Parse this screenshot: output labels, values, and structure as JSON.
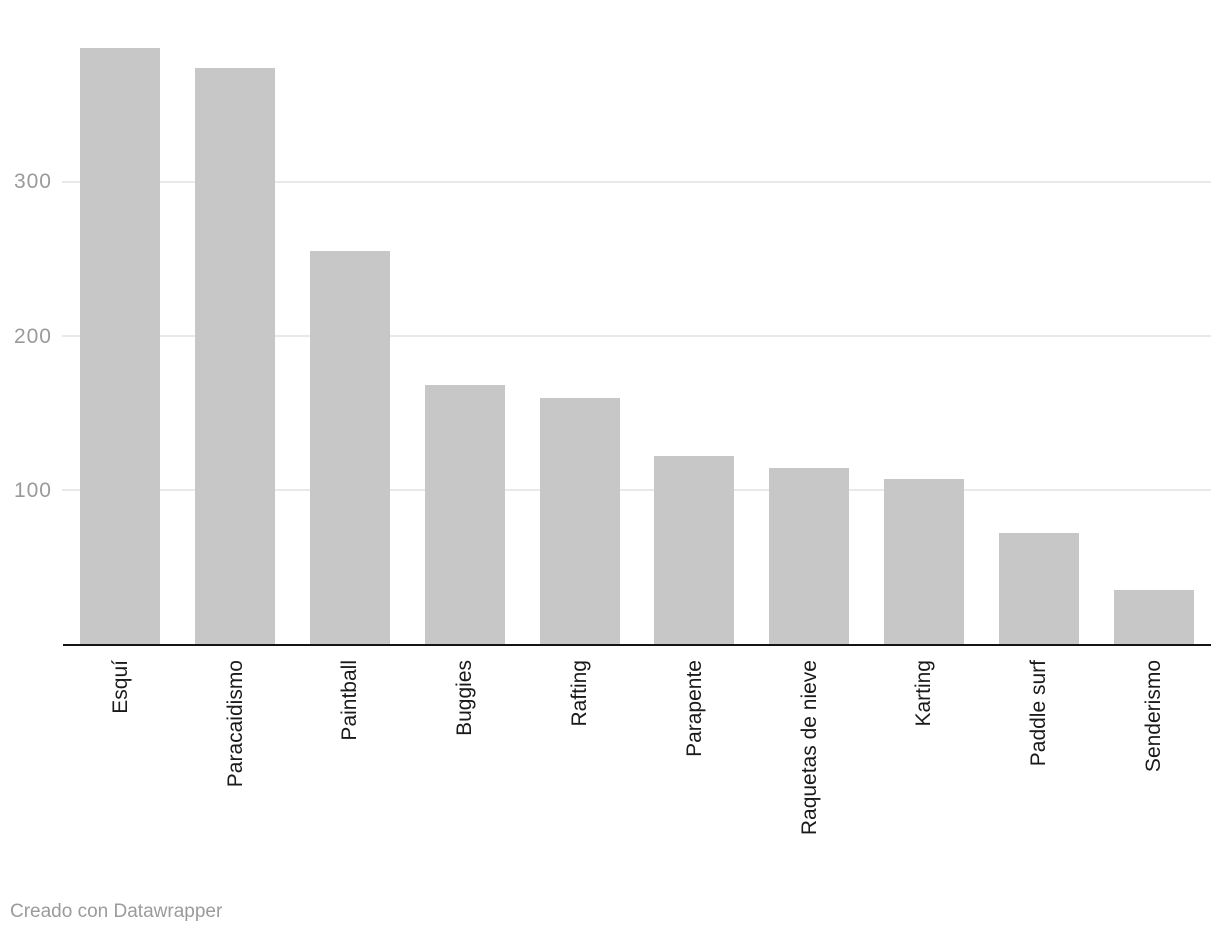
{
  "chart_data": {
    "type": "bar",
    "categories": [
      "Esquí",
      "Paracaidismo",
      "Paintball",
      "Buggies",
      "Rafting",
      "Parapente",
      "Raquetas de nieve",
      "Karting",
      "Paddle surf",
      "Senderismo"
    ],
    "values": [
      387,
      374,
      255,
      168,
      160,
      122,
      114,
      107,
      72,
      35
    ],
    "title": "",
    "xlabel": "",
    "ylabel": "",
    "ylim": [
      0,
      418
    ],
    "yticks": [
      100,
      200,
      300
    ],
    "grid": true,
    "legend": "none",
    "orientation": "vertical",
    "colors": {
      "bar": "#c7c7c7",
      "gridline": "#e9e9e9",
      "axis_line": "#141414",
      "tick_label": "#9a9a9a",
      "category_label": "#1a1a1a"
    }
  },
  "footer": {
    "credit": "Creado con Datawrapper",
    "color": "#9b9b9b"
  }
}
